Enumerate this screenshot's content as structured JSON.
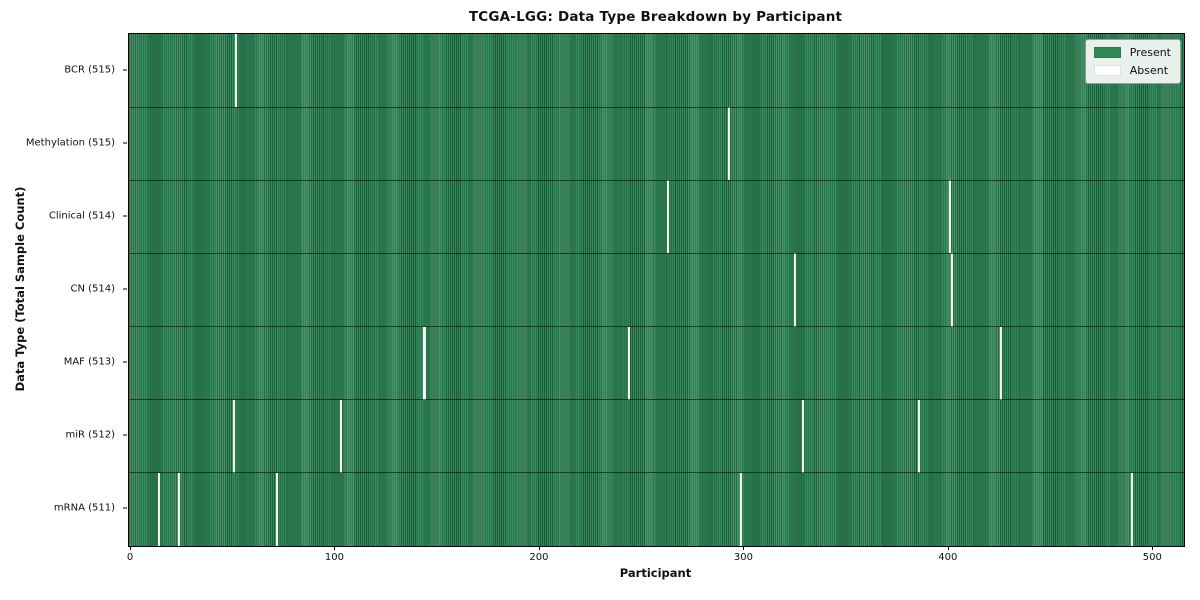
{
  "chart_data": {
    "type": "heatmap",
    "title": "TCGA-LGG: Data Type Breakdown by Participant",
    "xlabel": "Participant",
    "ylabel": "Data Type (Total Sample Count)",
    "n_participants": 516,
    "xlim": [
      -0.5,
      515.5
    ],
    "x_ticks": [
      0,
      100,
      200,
      300,
      400,
      500
    ],
    "grid": false,
    "legend": {
      "position": "upper right",
      "entries": [
        {
          "label": "Present",
          "color": "#2e8b57"
        },
        {
          "label": "Absent",
          "color": "#ffffff"
        }
      ]
    },
    "rows": [
      {
        "data_type": "BCR",
        "label": "BCR (515)",
        "present_count": 515,
        "absent_participants": [
          52
        ]
      },
      {
        "data_type": "Methylation",
        "label": "Methylation (515)",
        "present_count": 515,
        "absent_participants": [
          293
        ]
      },
      {
        "data_type": "Clinical",
        "label": "Clinical (514)",
        "present_count": 514,
        "absent_participants": [
          263,
          401
        ]
      },
      {
        "data_type": "CN",
        "label": "CN (514)",
        "present_count": 514,
        "absent_participants": [
          325,
          402
        ]
      },
      {
        "data_type": "MAF",
        "label": "MAF (513)",
        "present_count": 513,
        "absent_participants": [
          144,
          244,
          426
        ]
      },
      {
        "data_type": "miR",
        "label": "miR (512)",
        "present_count": 512,
        "absent_participants": [
          51,
          103,
          329,
          386
        ]
      },
      {
        "data_type": "mRNA",
        "label": "mRNA (511)",
        "present_count": 511,
        "absent_participants": [
          14,
          24,
          72,
          299,
          490
        ]
      }
    ],
    "colors": {
      "present": "#358c5e",
      "stripe_dark": "#1f5f3a",
      "absent_gap": "#f7f7f7",
      "legend_bg": "#eaf0eb",
      "legend_border": "#9b9b9b",
      "legend_present": "#2e8b57",
      "legend_absent": "#ffffff",
      "separator": "rgba(0,0,0,0.55)",
      "frame": "#000000"
    }
  }
}
